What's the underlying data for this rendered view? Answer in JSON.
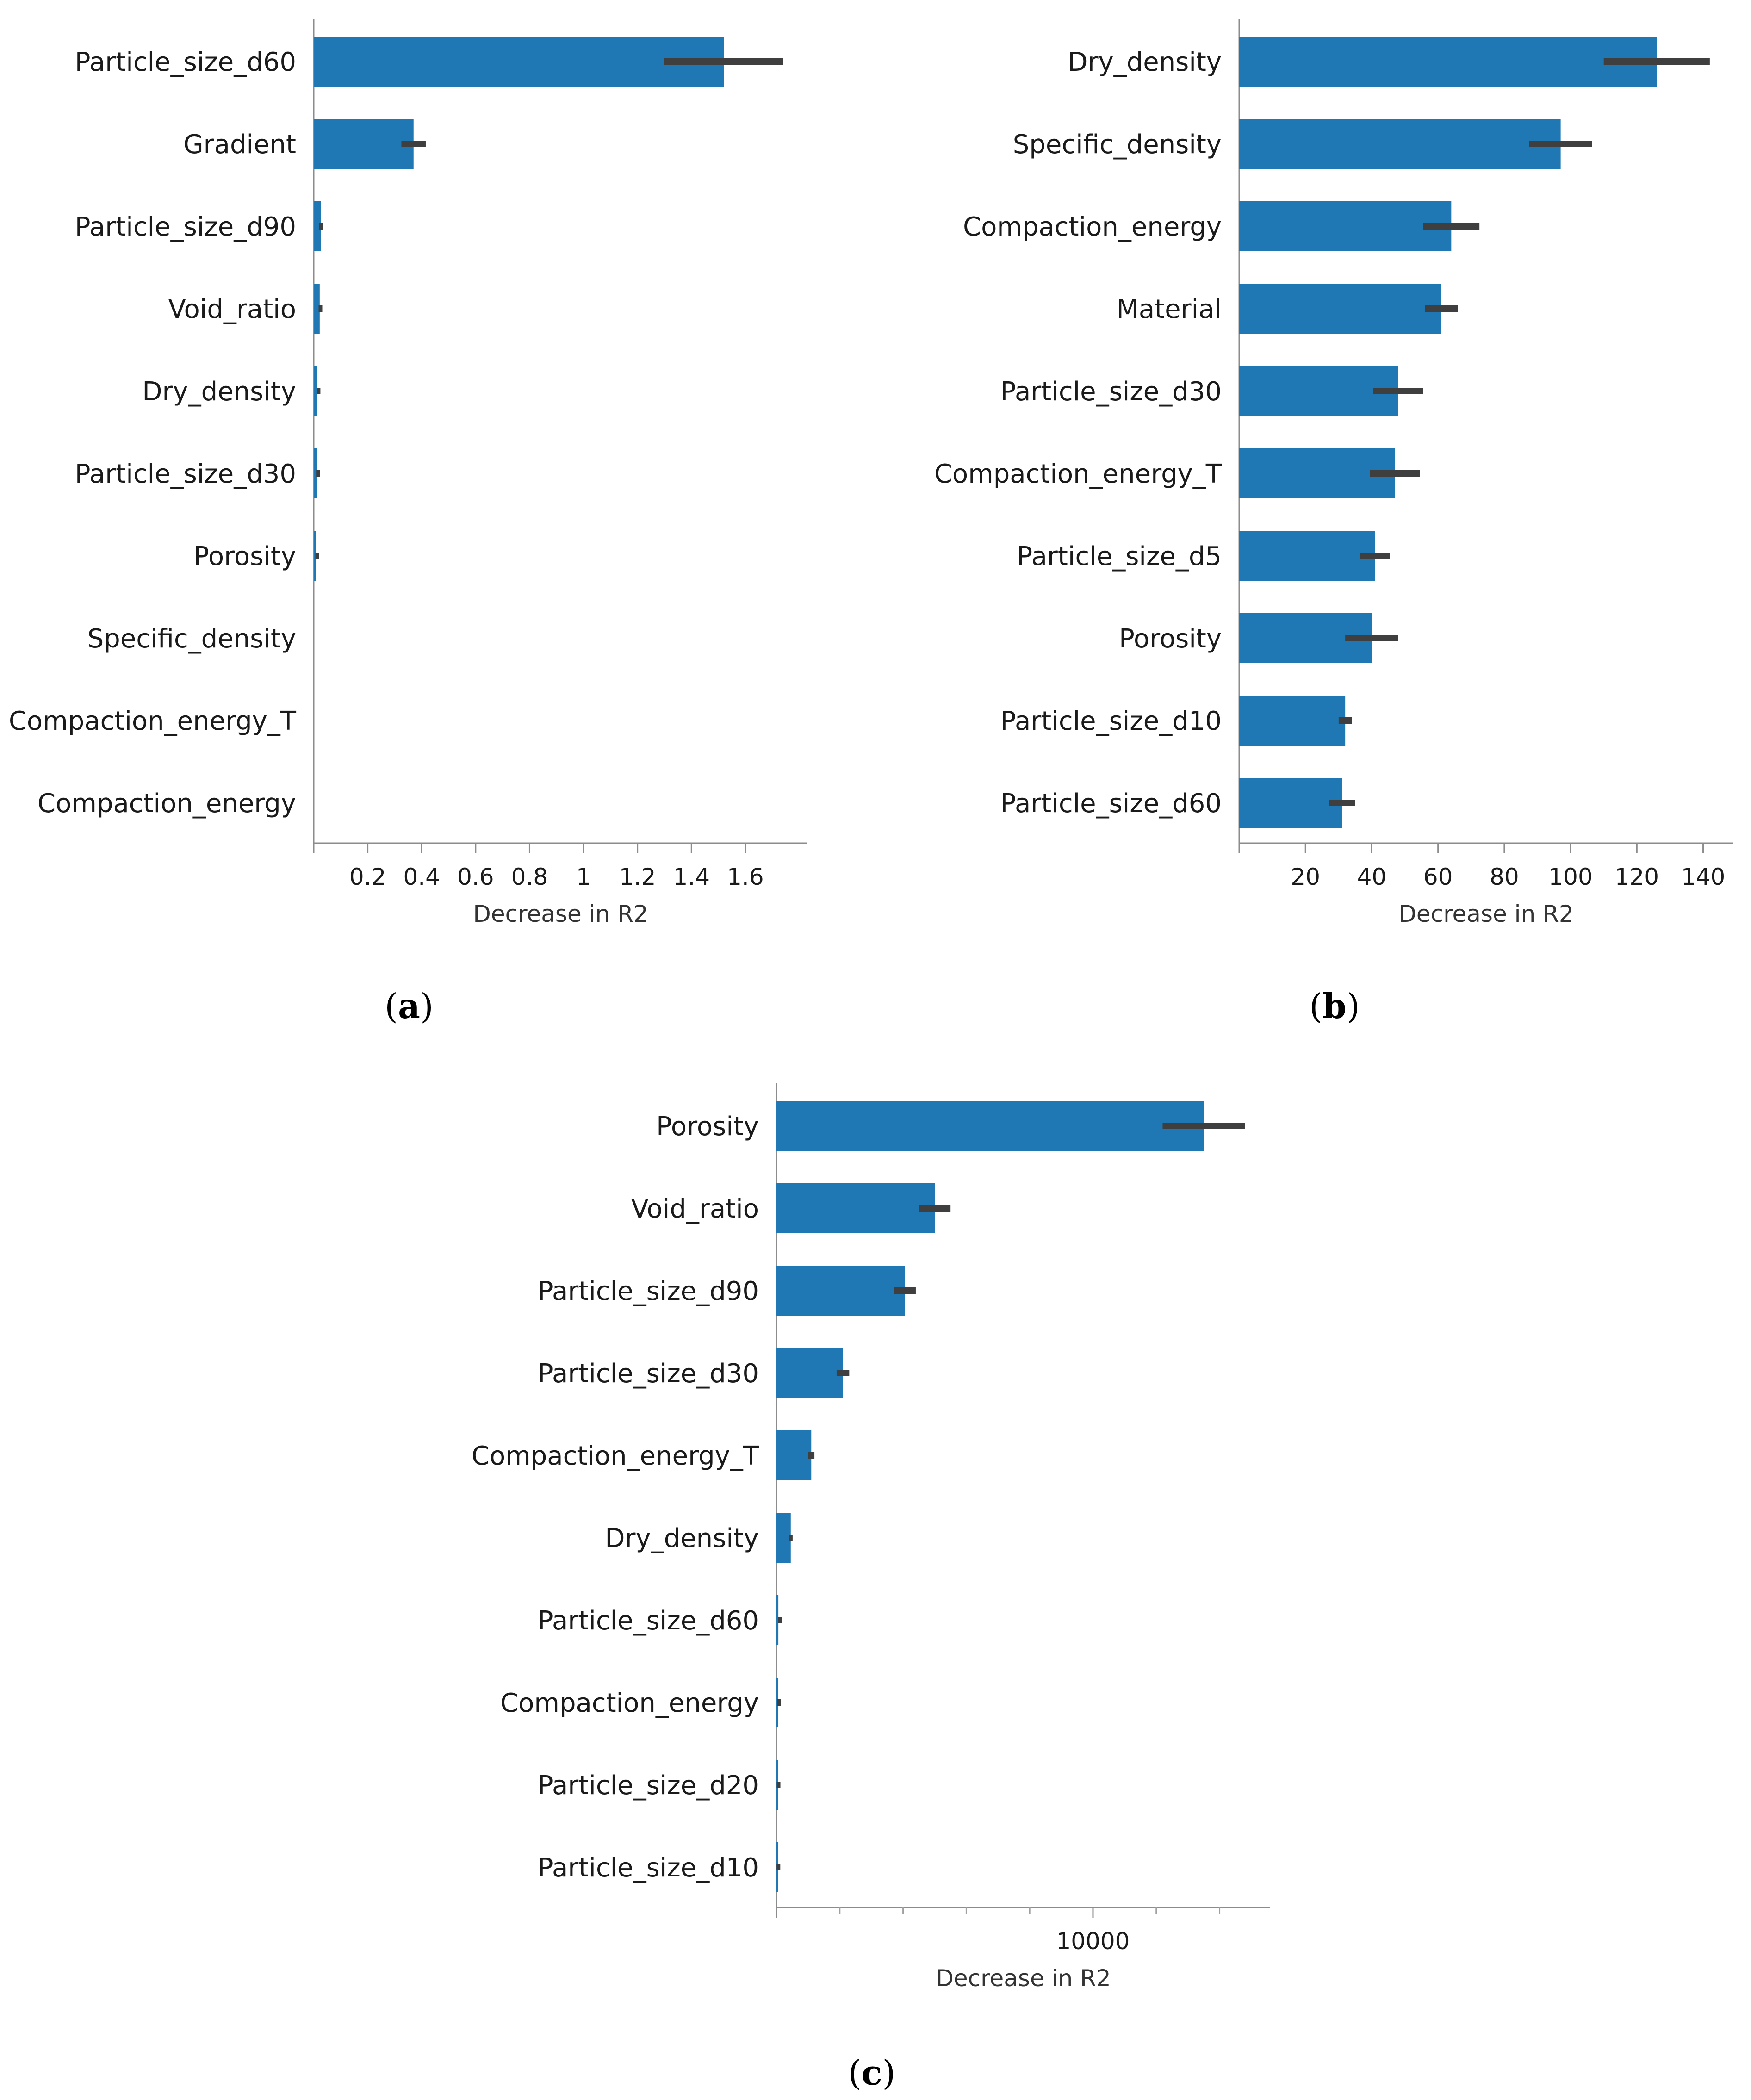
{
  "chart_data": [
    {
      "type": "bar",
      "orientation": "horizontal",
      "panel": "a",
      "categories": [
        "Particle_size_d60",
        "Gradient",
        "Particle_size_d90",
        "Void_ratio",
        "Dry_density",
        "Particle_size_d30",
        "Porosity",
        "Specific_density",
        "Compaction_energy_T",
        "Compaction_energy"
      ],
      "values": [
        1.52,
        0.37,
        0.027,
        0.022,
        0.013,
        0.011,
        0.007,
        0,
        0,
        0
      ],
      "error": [
        0.22,
        0.045,
        0.008,
        0.004,
        0.002,
        0.002,
        0.001,
        0,
        0,
        0
      ],
      "xlabel": "Decrease in R2",
      "xlim": [
        0,
        1.83
      ],
      "xticks": [
        0.2,
        0.4,
        0.6,
        0.8,
        1,
        1.2,
        1.4,
        1.6
      ],
      "xtick_labels": [
        "0.2",
        "0.4",
        "0.6",
        "0.8",
        "1",
        "1.2",
        "1.4",
        "1.6"
      ],
      "bar_color": "#1f77b4",
      "error_color": "#3f3f3f"
    },
    {
      "type": "bar",
      "orientation": "horizontal",
      "panel": "b",
      "categories": [
        "Dry_density",
        "Specific_density",
        "Compaction_energy",
        "Material",
        "Particle_size_d30",
        "Compaction_energy_T",
        "Particle_size_d5",
        "Porosity",
        "Particle_size_d10",
        "Particle_size_d60"
      ],
      "values": [
        126,
        97,
        64,
        61,
        48,
        47,
        41,
        40,
        32,
        31
      ],
      "error": [
        16,
        9.5,
        8.5,
        5,
        7.5,
        7.5,
        4.5,
        8,
        2,
        4
      ],
      "xlabel": "Decrease in R2",
      "xlim": [
        0,
        149
      ],
      "xticks": [
        20,
        40,
        60,
        80,
        100,
        120,
        140
      ],
      "xtick_labels": [
        "20",
        "40",
        "60",
        "80",
        "100",
        "120",
        "140"
      ],
      "bar_color": "#1f77b4",
      "error_color": "#3f3f3f"
    },
    {
      "type": "bar",
      "orientation": "horizontal",
      "panel": "c",
      "categories": [
        "Porosity",
        "Void_ratio",
        "Particle_size_d90",
        "Particle_size_d30",
        "Compaction_energy_T",
        "Dry_density",
        "Particle_size_d60",
        "Compaction_energy",
        "Particle_size_d20",
        "Particle_size_d10"
      ],
      "values": [
        13500,
        5000,
        4050,
        2100,
        1100,
        450,
        60,
        30,
        10,
        5
      ],
      "error": [
        1300,
        500,
        350,
        200,
        100,
        60,
        10,
        5,
        2,
        1
      ],
      "xlabel": "Decrease in R2",
      "xlim": [
        0,
        15600
      ],
      "xticks": [
        10000
      ],
      "xtick_labels": [
        "10000"
      ],
      "minor_xticks": [
        2000,
        4000,
        6000,
        8000,
        12000,
        14000
      ],
      "bar_color": "#1f77b4",
      "error_color": "#3f3f3f"
    }
  ],
  "captions": [
    {
      "open": "(",
      "letter": "a",
      "close": ")"
    },
    {
      "open": "(",
      "letter": "b",
      "close": ")"
    },
    {
      "open": "(",
      "letter": "c",
      "close": ")"
    }
  ]
}
